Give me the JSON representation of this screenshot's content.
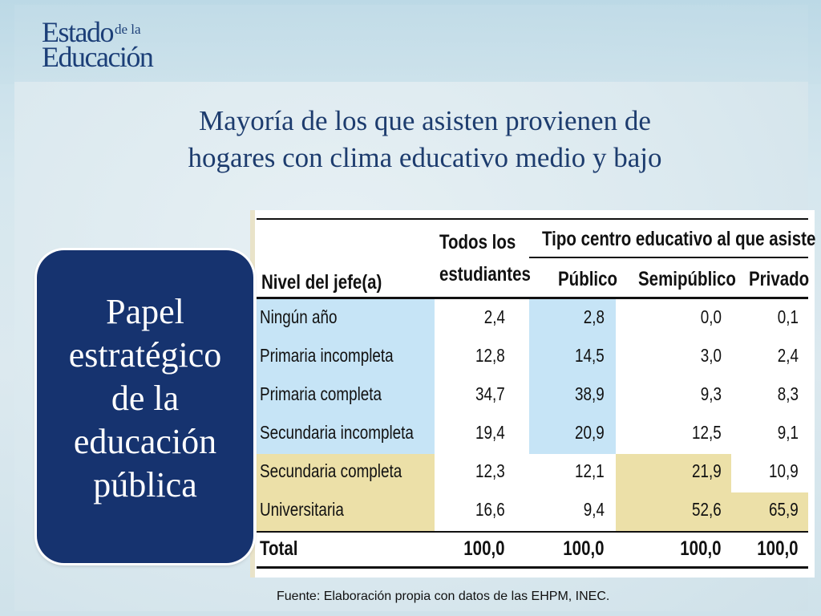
{
  "logo": {
    "line1": "Estado",
    "line1_small": "de la",
    "line2": "Educación"
  },
  "title_line1": "Mayoría de los que asisten  provienen de",
  "title_line2": "hogares con clima educativo medio y bajo",
  "card_text": "Papel estratégico de la educación pública",
  "table": {
    "row_header": "Nivel del jefe(a)",
    "col_all_line1": "Todos los",
    "col_all_line2": "estudiantes",
    "group_header": "Tipo centro educativo al que asiste",
    "col_publico": "Público",
    "col_semipublico": "Semipúblico",
    "col_privado": "Privado",
    "rows": [
      {
        "label": "Ningún año",
        "todos": "2,4",
        "publico": "2,8",
        "semipublico": "0,0",
        "privado": "0,1"
      },
      {
        "label": "Primaria incompleta",
        "todos": "12,8",
        "publico": "14,5",
        "semipublico": "3,0",
        "privado": "2,4"
      },
      {
        "label": "Primaria completa",
        "todos": "34,7",
        "publico": "38,9",
        "semipublico": "9,3",
        "privado": "8,3"
      },
      {
        "label": "Secundaria incompleta",
        "todos": "19,4",
        "publico": "20,9",
        "semipublico": "12,5",
        "privado": "9,1"
      },
      {
        "label": "Secundaria completa",
        "todos": "12,3",
        "publico": "12,1",
        "semipublico": "21,9",
        "privado": "10,9"
      },
      {
        "label": "Universitaria",
        "todos": "16,6",
        "publico": "9,4",
        "semipublico": "52,6",
        "privado": "65,9"
      }
    ],
    "total": {
      "label": "Total",
      "todos": "100,0",
      "publico": "100,0",
      "semipublico": "100,0",
      "privado": "100,0"
    }
  },
  "source": "Fuente: Elaboración propia con datos de las EHPM, INEC."
}
